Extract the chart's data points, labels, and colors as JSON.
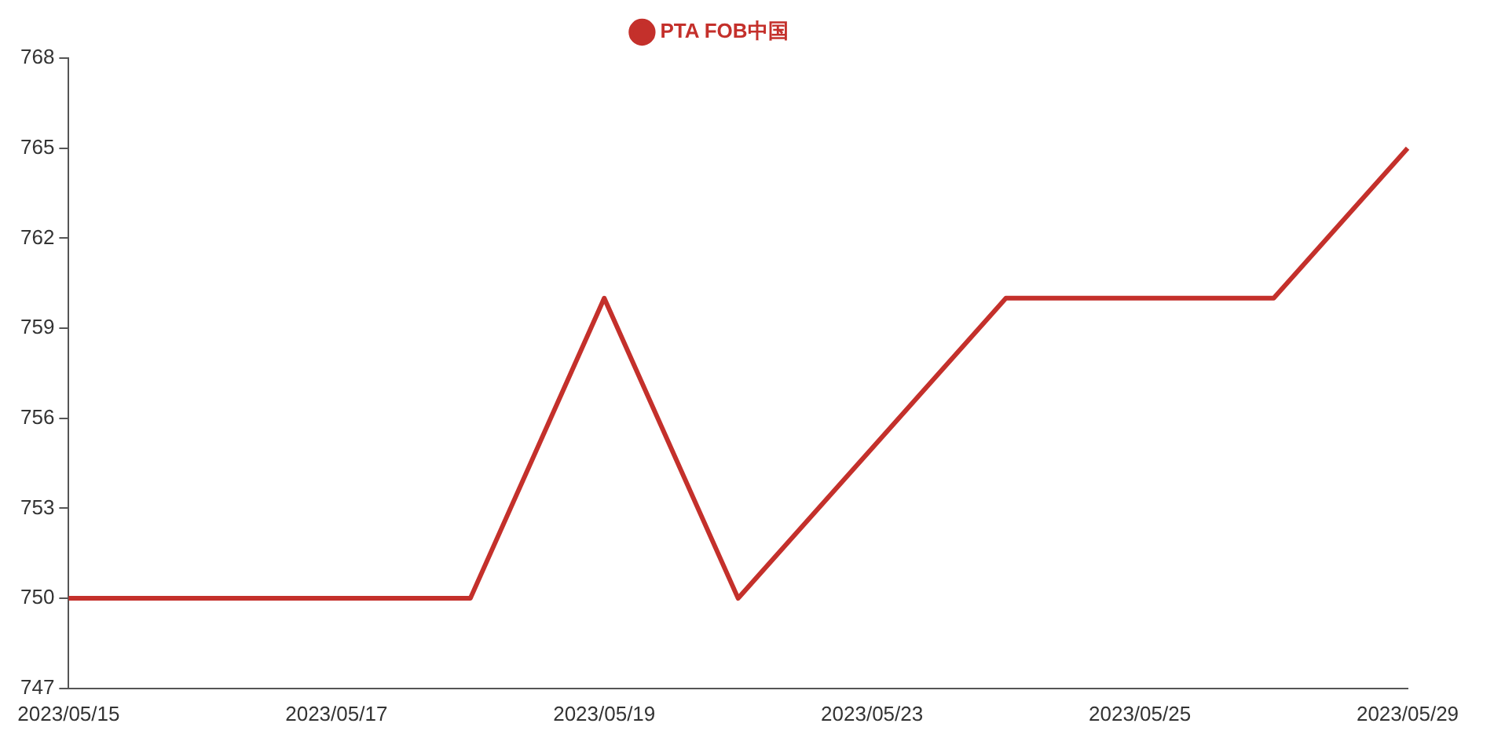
{
  "chart_data": {
    "type": "line",
    "categories": [
      "2023/05/15",
      null,
      "2023/05/17",
      null,
      "2023/05/19",
      null,
      "2023/05/23",
      null,
      "2023/05/25",
      null,
      "2023/05/29"
    ],
    "series": [
      {
        "name": "PTA FOB中国",
        "color": "#c4302b",
        "values": [
          750,
          750,
          750,
          750,
          760,
          750,
          755,
          760,
          760,
          760,
          765
        ]
      }
    ],
    "ylim": [
      747,
      768
    ],
    "yticks": [
      747,
      750,
      753,
      756,
      759,
      762,
      765,
      768
    ],
    "grid": false,
    "legend": "top",
    "marker": "none",
    "line_style": "solid"
  }
}
